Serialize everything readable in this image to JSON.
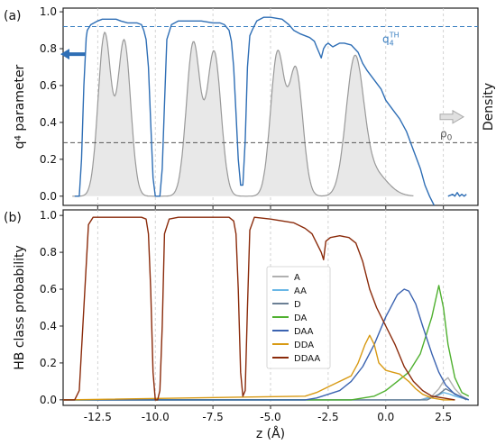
{
  "chart_data": [
    {
      "panel": "(a)",
      "type": "line",
      "ylabel_prefix": "q",
      "ylabel_sub": "4",
      "ylabel_suffix": " parameter",
      "ylabel_right": "Density",
      "xlim": [
        -14.0,
        4.0
      ],
      "ylim": [
        -0.05,
        1.02
      ],
      "yticks": [
        "0.0",
        "0.2",
        "0.4",
        "0.6",
        "0.8",
        "1.0"
      ],
      "grid": "vertical dashed at x ticks",
      "threshold_q4": {
        "label_main": "q",
        "label_sub": "4",
        "label_sup": "TH",
        "value": 0.92,
        "color": "#3a7fc1"
      },
      "threshold_rho": {
        "label_main": "ρ",
        "label_sub": "0",
        "value": 0.29,
        "color": "#555555"
      },
      "arrows": {
        "left_color": "#2e6eb5",
        "right_color": "#aaaaaa"
      },
      "series": [
        {
          "kind": "q4-line",
          "color": "#2e6eb5",
          "x": [
            -13.5,
            -13.3,
            -13.2,
            -13.1,
            -13.0,
            -12.95,
            -12.8,
            -12.5,
            -12.3,
            -12.0,
            -11.7,
            -11.5,
            -11.2,
            -10.8,
            -10.6,
            -10.5,
            -10.4,
            -10.3,
            -10.2,
            -10.1,
            -10.0,
            -9.9,
            -9.8,
            -9.7,
            -9.6,
            -9.5,
            -9.3,
            -9.0,
            -8.8,
            -8.5,
            -8.0,
            -7.5,
            -7.2,
            -7.0,
            -6.8,
            -6.7,
            -6.6,
            -6.5,
            -6.4,
            -6.3,
            -6.2,
            -6.1,
            -6.0,
            -5.9,
            -5.8,
            -5.6,
            -5.3,
            -5.0,
            -4.5,
            -4.2,
            -4.0,
            -3.7,
            -3.5,
            -3.3,
            -3.1,
            -3.0,
            -2.9,
            -2.8,
            -2.7,
            -2.6,
            -2.5,
            -2.3,
            -2.0,
            -1.8,
            -1.5,
            -1.2,
            -1.0,
            -0.8,
            -0.5,
            -0.2,
            0.0,
            0.3,
            0.6,
            0.9,
            1.2,
            1.5,
            1.7,
            1.9,
            2.1
          ],
          "y": [
            0.0,
            0.0,
            0.2,
            0.6,
            0.86,
            0.9,
            0.93,
            0.95,
            0.96,
            0.96,
            0.96,
            0.95,
            0.94,
            0.94,
            0.93,
            0.9,
            0.85,
            0.7,
            0.4,
            0.1,
            0.0,
            0.0,
            0.0,
            0.15,
            0.5,
            0.85,
            0.93,
            0.95,
            0.95,
            0.95,
            0.95,
            0.94,
            0.94,
            0.93,
            0.9,
            0.84,
            0.7,
            0.45,
            0.2,
            0.06,
            0.06,
            0.3,
            0.7,
            0.87,
            0.9,
            0.95,
            0.97,
            0.97,
            0.96,
            0.93,
            0.9,
            0.88,
            0.87,
            0.86,
            0.84,
            0.81,
            0.78,
            0.75,
            0.8,
            0.82,
            0.83,
            0.81,
            0.83,
            0.83,
            0.82,
            0.78,
            0.72,
            0.68,
            0.63,
            0.58,
            0.52,
            0.47,
            0.42,
            0.35,
            0.25,
            0.15,
            0.06,
            0.0,
            -0.05
          ]
        },
        {
          "kind": "q4-tail",
          "color": "#2e6eb5",
          "x": [
            2.7,
            2.9,
            3.0,
            3.1,
            3.2,
            3.3,
            3.4,
            3.5
          ],
          "y": [
            0.0,
            0.01,
            0.0,
            0.02,
            0.0,
            0.01,
            0.0,
            0.01
          ]
        },
        {
          "kind": "density-area",
          "color": "#999999",
          "fill": "#e8e8e8",
          "peaks": [
            {
              "x": -12.2,
              "h": 0.88,
              "w": 0.28
            },
            {
              "x": -11.35,
              "h": 0.84,
              "w": 0.28
            },
            {
              "x": -8.35,
              "h": 0.83,
              "w": 0.3
            },
            {
              "x": -7.45,
              "h": 0.78,
              "w": 0.3
            },
            {
              "x": -4.7,
              "h": 0.77,
              "w": 0.3
            },
            {
              "x": -3.9,
              "h": 0.68,
              "w": 0.3
            },
            {
              "x": -1.35,
              "h": 0.71,
              "w": 0.38
            },
            {
              "x": -0.55,
              "h": 0.13,
              "w": 0.6
            }
          ]
        }
      ]
    },
    {
      "panel": "(b)",
      "type": "line",
      "xlabel": "z (Å)",
      "ylabel": "HB class probability",
      "xlim": [
        -14.0,
        4.0
      ],
      "ylim": [
        -0.03,
        1.03
      ],
      "xticks": [
        "-12.5",
        "-10.0",
        "-7.5",
        "-5.0",
        "-2.5",
        "0.0",
        "2.5"
      ],
      "xtick_values": [
        -12.5,
        -10.0,
        -7.5,
        -5.0,
        -2.5,
        0.0,
        2.5
      ],
      "yticks": [
        "0.0",
        "0.2",
        "0.4",
        "0.6",
        "0.8",
        "1.0"
      ],
      "grid": "vertical dashed at x ticks",
      "legend_position": "center-right",
      "series": [
        {
          "name": "A",
          "color": "#b0b0b0",
          "x": [
            -14,
            1.5,
            2.0,
            2.3,
            2.5,
            2.7,
            3.0,
            3.3,
            3.6
          ],
          "y": [
            0,
            0.0,
            0.02,
            0.06,
            0.1,
            0.12,
            0.06,
            0.02,
            0.0
          ]
        },
        {
          "name": "AA",
          "color": "#6ab7e6",
          "x": [
            -14,
            1.5,
            2.2,
            2.5,
            2.8,
            3.0,
            3.3,
            3.6
          ],
          "y": [
            0,
            0.0,
            0.02,
            0.04,
            0.03,
            0.02,
            0.01,
            0.0
          ]
        },
        {
          "name": "D",
          "color": "#6b7f94",
          "x": [
            -14,
            1.8,
            2.3,
            2.6,
            2.9,
            3.2,
            3.5
          ],
          "y": [
            0,
            0.0,
            0.03,
            0.06,
            0.04,
            0.02,
            0.0
          ]
        },
        {
          "name": "DA",
          "color": "#4fb02f",
          "x": [
            -14,
            -1.5,
            -0.5,
            0.0,
            0.5,
            1.0,
            1.5,
            2.0,
            2.3,
            2.5,
            2.7,
            3.0,
            3.3,
            3.6
          ],
          "y": [
            0,
            0.0,
            0.02,
            0.05,
            0.1,
            0.15,
            0.25,
            0.45,
            0.62,
            0.5,
            0.3,
            0.12,
            0.04,
            0.02
          ]
        },
        {
          "name": "DAA",
          "color": "#3b63b0",
          "x": [
            -14,
            -3.5,
            -3.0,
            -2.0,
            -1.5,
            -1.0,
            -0.5,
            0.0,
            0.5,
            0.8,
            1.0,
            1.3,
            1.6,
            2.0,
            2.3,
            2.6,
            3.0,
            3.6
          ],
          "y": [
            0,
            0.0,
            0.01,
            0.05,
            0.1,
            0.18,
            0.3,
            0.45,
            0.57,
            0.6,
            0.59,
            0.52,
            0.4,
            0.25,
            0.15,
            0.08,
            0.03,
            0.0
          ]
        },
        {
          "name": "DDA",
          "color": "#d89a14",
          "x": [
            -14,
            -3.5,
            -3.0,
            -2.5,
            -2.0,
            -1.5,
            -1.2,
            -0.9,
            -0.7,
            -0.5,
            -0.3,
            0.0,
            0.3,
            0.6,
            1.0,
            1.3,
            1.6,
            2.0,
            2.5,
            3.0
          ],
          "y": [
            0,
            0.02,
            0.04,
            0.07,
            0.1,
            0.13,
            0.2,
            0.3,
            0.35,
            0.3,
            0.2,
            0.16,
            0.15,
            0.14,
            0.1,
            0.06,
            0.03,
            0.01,
            0.0,
            0.0
          ]
        },
        {
          "name": "DDAA",
          "color": "#8a2a0a",
          "x": [
            -14.0,
            -13.7,
            -13.5,
            -13.3,
            -13.1,
            -12.9,
            -12.7,
            -11.0,
            -10.6,
            -10.4,
            -10.3,
            -10.2,
            -10.1,
            -10.0,
            -9.9,
            -9.8,
            -9.7,
            -9.6,
            -9.4,
            -9.0,
            -8.0,
            -7.0,
            -6.8,
            -6.6,
            -6.5,
            -6.4,
            -6.3,
            -6.2,
            -6.1,
            -6.0,
            -5.9,
            -5.7,
            -5.0,
            -4.0,
            -3.5,
            -3.2,
            -3.0,
            -2.8,
            -2.7,
            -2.6,
            -2.4,
            -2.0,
            -1.6,
            -1.3,
            -1.0,
            -0.7,
            -0.4,
            0.0,
            0.4,
            0.8,
            1.2,
            1.6,
            2.0,
            2.5,
            3.0
          ],
          "y": [
            0,
            0,
            0.0,
            0.05,
            0.5,
            0.95,
            0.99,
            0.99,
            0.99,
            0.98,
            0.9,
            0.6,
            0.15,
            0.0,
            0.0,
            0.05,
            0.4,
            0.9,
            0.98,
            0.99,
            0.99,
            0.99,
            0.99,
            0.97,
            0.9,
            0.6,
            0.15,
            0.02,
            0.05,
            0.5,
            0.92,
            0.99,
            0.98,
            0.96,
            0.93,
            0.9,
            0.85,
            0.8,
            0.76,
            0.86,
            0.88,
            0.89,
            0.88,
            0.85,
            0.75,
            0.6,
            0.5,
            0.4,
            0.3,
            0.18,
            0.1,
            0.05,
            0.02,
            0.01,
            0.0
          ]
        }
      ]
    }
  ]
}
